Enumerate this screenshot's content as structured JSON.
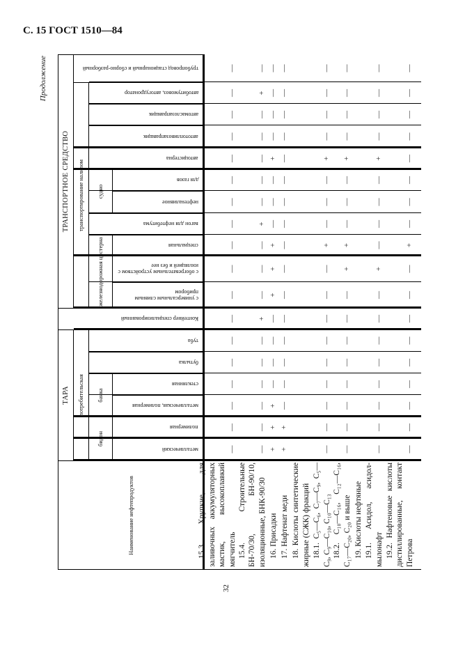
{
  "header": {
    "title": "С. 15 ГОСТ 1510—84",
    "continuation": "Продолжение",
    "page_number": "32"
  },
  "columns": {
    "name": "Наименование нефтепродуктов",
    "tara": "ТАРА",
    "consumer": "потребительская",
    "bidon": "бидон",
    "bidon_metal": "металлический",
    "bidon_polymer": "полимерная",
    "banka": "банка",
    "banka_metal_polymer": "металлическая, полимерная",
    "banka_glass": "стеклянная",
    "bottle": "бутылка",
    "tube": "туба",
    "container": "Контейнер специализированный",
    "transport": "ТРАНСПОРТНОЕ СРЕДСТВО",
    "bulk": "транспортирование наливом",
    "rail_tank": "железнодорожная цистерна",
    "rail_universal": "с универсальным сливным прибором",
    "rail_heating": "с обогревательным устройством с изоляцией и без нее",
    "rail_special": "специальная",
    "bitumen_wagon": "вагон для нефтебитума",
    "ship": "судно",
    "ship_oil": "нефтеналивное",
    "ship_gas": "для газов",
    "autotank": "автоцистерна",
    "fuel_truck": "автотопливозаправщик",
    "oil_truck": "автомаслозаправщик",
    "bitumen_truck": "автобитумовоз, автогудронатор",
    "pipeline": "трубопровод стационарный и сборно-разборный"
  },
  "products": [
    {
      "name": "15.3. Хрупкие, для заливочных аккумуляторных мастик, высокоплавкий мягчитель",
      "marks": [
        "—",
        "—",
        "—",
        "—",
        "—",
        "—",
        "—",
        "—",
        "—",
        "—",
        "—",
        "—",
        "—",
        "—",
        "—",
        "—",
        "—",
        "—"
      ]
    },
    {
      "name": "15.4. Строительные БН-70/30, БН-90/10, изоляционные, БНК-90/30",
      "marks": [
        "—",
        "—",
        "—",
        "—",
        "—",
        "—",
        "+",
        "—",
        "—",
        "—",
        "+",
        "—",
        "—",
        "—",
        "—",
        "—",
        "+",
        "—"
      ]
    },
    {
      "name": "16. Присадки",
      "marks": [
        "+",
        "+",
        "+",
        "—",
        "—",
        "—",
        "—",
        "+",
        "+",
        "+",
        "—",
        "—",
        "—",
        "+",
        "—",
        "—",
        "—",
        "—"
      ]
    },
    {
      "name": "17. Нафтенат меди",
      "marks": [
        "+",
        "+",
        "—",
        "—",
        "—",
        "—",
        "—",
        "—",
        "—",
        "—",
        "—",
        "—",
        "—",
        "—",
        "—",
        "—",
        "—",
        "—"
      ]
    },
    {
      "name": "18. Кислоты синтетические жирные (СЖК) фракций",
      "marks": []
    },
    {
      "name": "18.1. C₅—C₆, C₇—C₉, C₅—C₉, C₉—C₁₀, C₁₀—C₁₃",
      "marks": [
        "—",
        "—",
        "—",
        "—",
        "—",
        "—",
        "—",
        "—",
        "—",
        "+",
        "—",
        "—",
        "—",
        "+",
        "—",
        "—",
        "—",
        "—"
      ]
    },
    {
      "name": "18.2. C₁₀—C₁₆, C₁₂—C₁₆, C₁₇—C₂₀, C₂₀ и выше",
      "marks": [
        "—",
        "—",
        "—",
        "—",
        "—",
        "—",
        "—",
        "—",
        "+",
        "+",
        "—",
        "—",
        "—",
        "+",
        "—",
        "—",
        "—",
        "—"
      ]
    },
    {
      "name": "19. Кислоты нефтяные",
      "marks": []
    },
    {
      "name": "19.1. Асидол, асидол-мылонафт",
      "marks": [
        "—",
        "—",
        "—",
        "—",
        "—",
        "—",
        "—",
        "—",
        "+",
        "—",
        "—",
        "—",
        "—",
        "+",
        "—",
        "—",
        "—",
        "—"
      ]
    },
    {
      "name": "19.2. Нафтеновые кислоты дистиллированные, контакт Петрова",
      "marks": [
        "—",
        "—",
        "—",
        "—",
        "—",
        "—",
        "—",
        "—",
        "—",
        "+",
        "—",
        "—",
        "—",
        "—",
        "—",
        "—",
        "—",
        "—"
      ]
    }
  ]
}
